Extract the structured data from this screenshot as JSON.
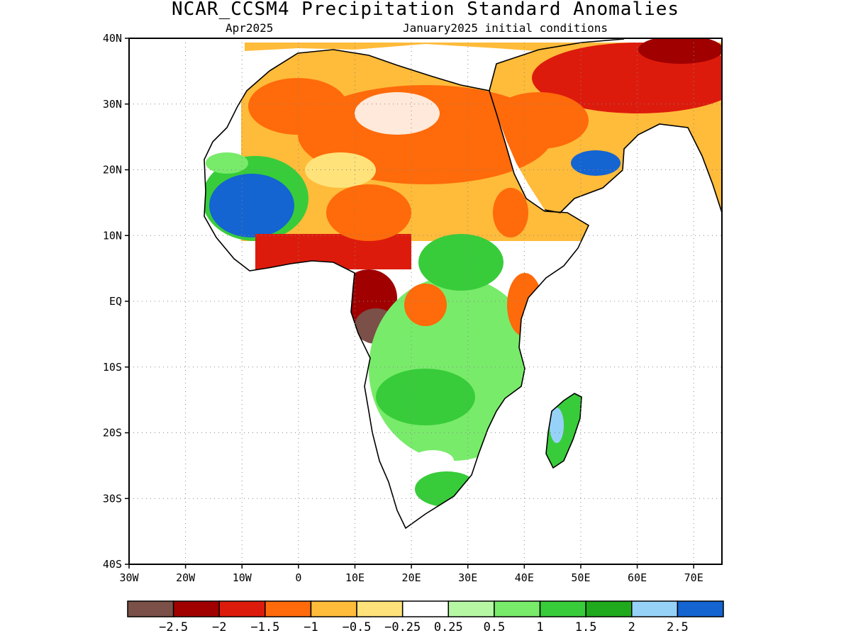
{
  "title": "NCAR_CCSM4 Precipitation Standard Anomalies",
  "subtitle_left": "Apr2025",
  "subtitle_right": "January2025 initial conditions",
  "map": {
    "lon_range": [
      -30,
      75
    ],
    "lat_range": [
      -40,
      40
    ],
    "lat_ticks": [
      {
        "value": 40,
        "label": "40N"
      },
      {
        "value": 30,
        "label": "30N"
      },
      {
        "value": 20,
        "label": "20N"
      },
      {
        "value": 10,
        "label": "10N"
      },
      {
        "value": 0,
        "label": "EQ"
      },
      {
        "value": -10,
        "label": "10S"
      },
      {
        "value": -20,
        "label": "20S"
      },
      {
        "value": -30,
        "label": "30S"
      },
      {
        "value": -40,
        "label": "40S"
      }
    ],
    "lon_ticks": [
      {
        "value": -30,
        "label": "30W"
      },
      {
        "value": -20,
        "label": "20W"
      },
      {
        "value": -10,
        "label": "10W"
      },
      {
        "value": 0,
        "label": "0"
      },
      {
        "value": 10,
        "label": "10E"
      },
      {
        "value": 20,
        "label": "20E"
      },
      {
        "value": 30,
        "label": "30E"
      },
      {
        "value": 40,
        "label": "40E"
      },
      {
        "value": 50,
        "label": "50E"
      },
      {
        "value": 60,
        "label": "60E"
      },
      {
        "value": 70,
        "label": "70E"
      }
    ],
    "grid": true
  },
  "colorbar": {
    "colors": [
      "#7a5048",
      "#a00000",
      "#dd1b0c",
      "#ff6a0a",
      "#ffbb3a",
      "#ffe27a",
      "#ffffff",
      "#b6f7a4",
      "#78eb6a",
      "#38cc3a",
      "#1fa91c",
      "#96d2f8",
      "#1464d2"
    ],
    "labels": [
      "−2.5",
      "−2",
      "−1.5",
      "−1",
      "−0.5",
      "−0.25",
      "0.25",
      "0.5",
      "1",
      "1.5",
      "2",
      "2.5"
    ]
  },
  "anomaly_regions": [
    {
      "name": "Sahara / North Africa",
      "category": "-1"
    },
    {
      "name": "Middle East",
      "category": "-1.5"
    },
    {
      "name": "Senegal / Guinea coast",
      "category": "2.5"
    },
    {
      "name": "Gulf of Guinea coast",
      "category": "-1.5"
    },
    {
      "name": "Gabon / Congo coast",
      "category": "-2"
    },
    {
      "name": "Angola coast",
      "category": "-2.5"
    },
    {
      "name": "Central & southern Africa",
      "category": "1"
    },
    {
      "name": "Madagascar",
      "category": "1.5"
    },
    {
      "name": "Oman",
      "category": "2.5"
    },
    {
      "name": "East Africa coast",
      "category": "-1"
    }
  ]
}
